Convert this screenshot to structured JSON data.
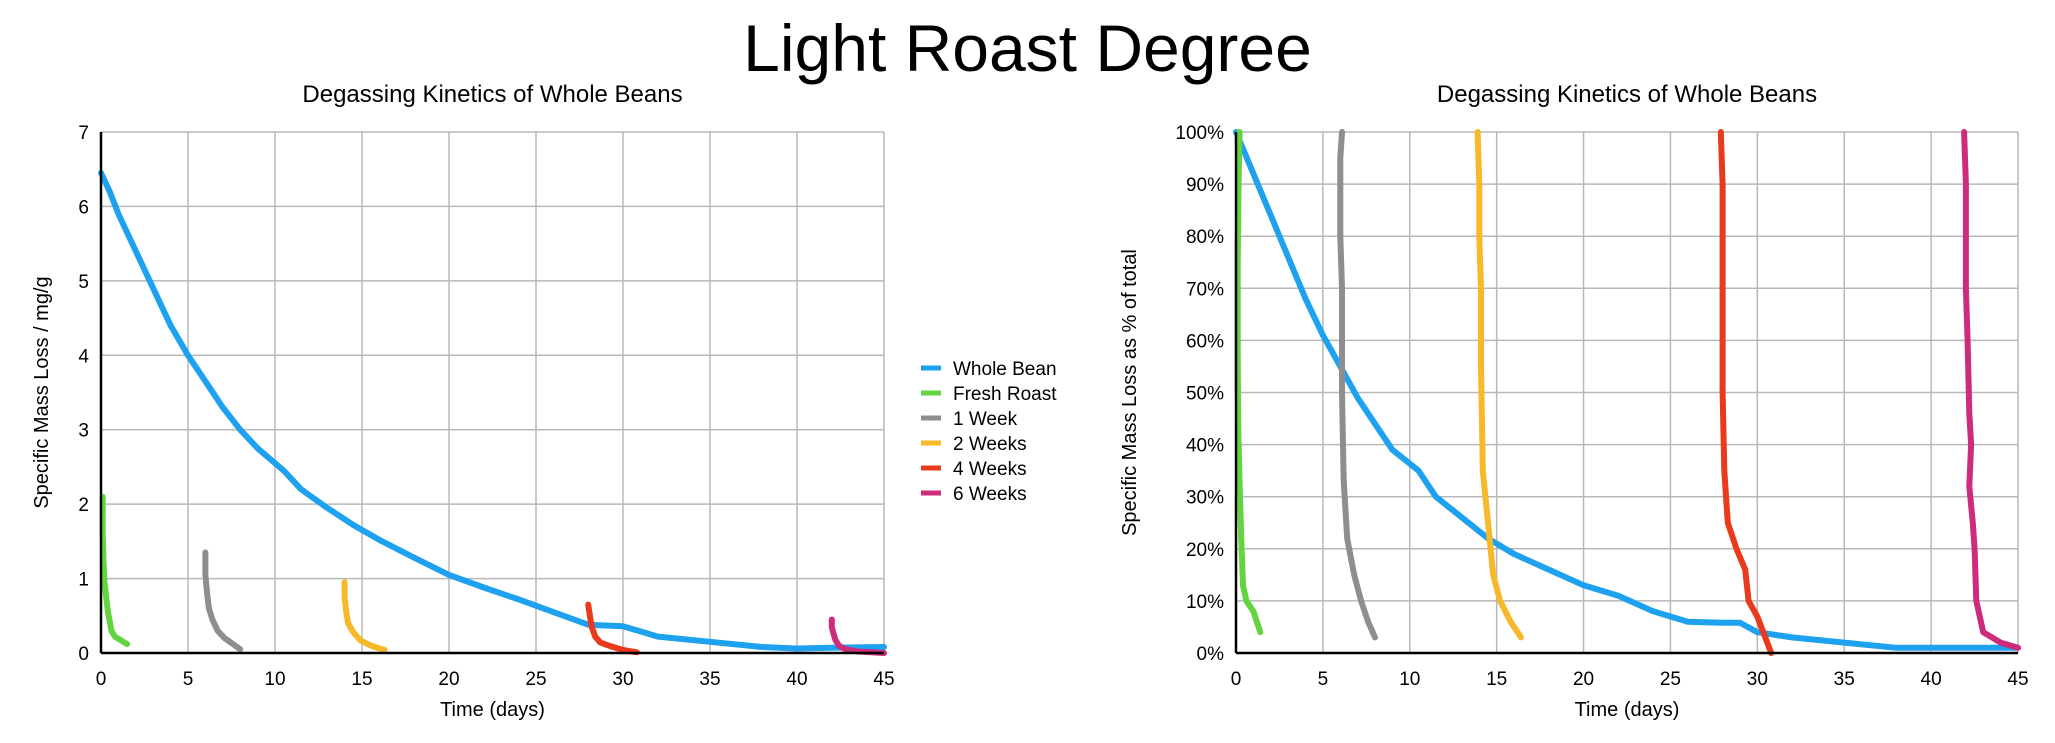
{
  "page_title": "Light Roast Degree",
  "colors": {
    "Whole Bean": "#1ea1ef",
    "Fresh Roast": "#62d43f",
    "1 Week": "#8e8e8e",
    "2 Weeks": "#f6b92a",
    "4 Weeks": "#ea3a1c",
    "6 Weeks": "#cd2b7b"
  },
  "legend": {
    "placement": "between charts, right of left chart",
    "entries": [
      "Whole Bean",
      "Fresh Roast",
      "1 Week",
      "2 Weeks",
      "4 Weeks",
      "6 Weeks"
    ]
  },
  "chart_data": [
    {
      "type": "line",
      "title": "Degassing Kinetics of Whole Beans",
      "xlabel": "Time (days)",
      "ylabel": "Specific Mass Loss / mg/g",
      "xlim": [
        0,
        45
      ],
      "ylim": [
        0,
        7
      ],
      "xticks": [
        "0",
        "5",
        "10",
        "15",
        "20",
        "25",
        "30",
        "35",
        "40",
        "45"
      ],
      "yticks": [
        "0",
        "1",
        "2",
        "3",
        "4",
        "5",
        "6",
        "7"
      ],
      "grid": true,
      "series": [
        {
          "name": "Whole Bean",
          "x": [
            0,
            0.5,
            1,
            2,
            3,
            4,
            5,
            6,
            7,
            8,
            9,
            10.5,
            11.5,
            13,
            14.5,
            16,
            18,
            20,
            22,
            24,
            26,
            28,
            29,
            30,
            32,
            35,
            38,
            40,
            42,
            45
          ],
          "y": [
            6.45,
            6.2,
            5.9,
            5.4,
            4.9,
            4.4,
            4.0,
            3.65,
            3.3,
            3.0,
            2.75,
            2.45,
            2.2,
            1.95,
            1.72,
            1.52,
            1.28,
            1.05,
            0.88,
            0.72,
            0.55,
            0.38,
            0.37,
            0.36,
            0.22,
            0.15,
            0.08,
            0.06,
            0.07,
            0.08
          ]
        },
        {
          "name": "Fresh Roast",
          "x": [
            0.1,
            0.1,
            0.15,
            0.2,
            0.3,
            0.4,
            0.6,
            0.8,
            1.5
          ],
          "y": [
            2.1,
            1.6,
            1.2,
            0.95,
            0.75,
            0.55,
            0.3,
            0.22,
            0.12
          ]
        },
        {
          "name": "1 Week",
          "x": [
            6,
            6,
            6.1,
            6.2,
            6.4,
            6.7,
            7.1,
            7.6,
            8
          ],
          "y": [
            1.35,
            1.05,
            0.8,
            0.6,
            0.45,
            0.3,
            0.2,
            0.12,
            0.05
          ]
        },
        {
          "name": "2 Weeks",
          "x": [
            14,
            14,
            14.1,
            14.2,
            14.5,
            14.9,
            15.5,
            16.3
          ],
          "y": [
            0.95,
            0.75,
            0.55,
            0.4,
            0.28,
            0.17,
            0.1,
            0.04
          ]
        },
        {
          "name": "4 Weeks",
          "x": [
            28,
            28.1,
            28.2,
            28.4,
            28.7,
            29.3,
            30,
            30.8
          ],
          "y": [
            0.65,
            0.5,
            0.35,
            0.22,
            0.14,
            0.09,
            0.04,
            0.01
          ]
        },
        {
          "name": "6 Weeks",
          "x": [
            42,
            42,
            42.1,
            42.2,
            42.4,
            42.8,
            43.5,
            45
          ],
          "y": [
            0.45,
            0.35,
            0.26,
            0.18,
            0.1,
            0.05,
            0.02,
            0.0
          ]
        }
      ]
    },
    {
      "type": "line",
      "title": "Degassing Kinetics of Whole Beans",
      "xlabel": "Time (days)",
      "ylabel": "Specific Mass Loss as % of total",
      "xlim": [
        0,
        45
      ],
      "ylim": [
        0,
        100
      ],
      "xticks": [
        "0",
        "5",
        "10",
        "15",
        "20",
        "25",
        "30",
        "35",
        "40",
        "45"
      ],
      "yticks": [
        "0%",
        "10%",
        "20%",
        "30%",
        "40%",
        "50%",
        "60%",
        "70%",
        "80%",
        "90%",
        "100%"
      ],
      "grid": true,
      "series": [
        {
          "name": "Whole Bean",
          "x": [
            0,
            1,
            2,
            3,
            4,
            5,
            6,
            7,
            8,
            9,
            10.5,
            11.5,
            13,
            14.5,
            16,
            18,
            20,
            22,
            24,
            26,
            28,
            29,
            30,
            32,
            35,
            38,
            40,
            42,
            45
          ],
          "y": [
            100,
            92,
            84,
            76,
            68,
            61,
            55,
            49,
            44,
            39,
            35,
            30,
            26,
            22,
            19,
            16,
            13,
            11,
            8,
            6,
            5.8,
            5.8,
            4,
            3,
            2,
            1,
            1,
            1,
            1
          ]
        },
        {
          "name": "Fresh Roast",
          "x": [
            0.2,
            0.15,
            0.1,
            0.1,
            0.12,
            0.2,
            0.3,
            0.4,
            0.6,
            1.0,
            1.4
          ],
          "y": [
            100,
            90,
            75,
            58,
            45,
            33,
            22,
            13,
            10,
            8,
            4
          ]
        },
        {
          "name": "1 Week",
          "x": [
            6.1,
            6.0,
            6.0,
            6.1,
            6.1,
            6.2,
            6.4,
            6.8,
            7.2,
            7.6,
            8
          ],
          "y": [
            100,
            95,
            80,
            70,
            50,
            33,
            22,
            15,
            10,
            6,
            3
          ]
        },
        {
          "name": "2 Weeks",
          "x": [
            13.9,
            14.0,
            14.0,
            14.1,
            14.1,
            14.2,
            14.5,
            14.8,
            15.2,
            15.8,
            16.4
          ],
          "y": [
            100,
            90,
            80,
            70,
            55,
            35,
            25,
            15,
            10,
            6,
            3
          ]
        },
        {
          "name": "4 Weeks",
          "x": [
            27.9,
            28.0,
            28.0,
            28.0,
            28.1,
            28.3,
            28.8,
            29.3,
            29.5,
            30.0,
            30.8
          ],
          "y": [
            100,
            90,
            70,
            50,
            35,
            25,
            20,
            16,
            10,
            7,
            0
          ]
        },
        {
          "name": "6 Weeks",
          "x": [
            41.9,
            42.0,
            42.0,
            42.1,
            42.2,
            42.3,
            42.2,
            42.4,
            42.5,
            42.6,
            43,
            44,
            45
          ],
          "y": [
            100,
            90,
            70,
            60,
            46,
            40,
            32,
            25,
            20,
            10,
            4,
            2,
            1
          ]
        }
      ]
    }
  ]
}
